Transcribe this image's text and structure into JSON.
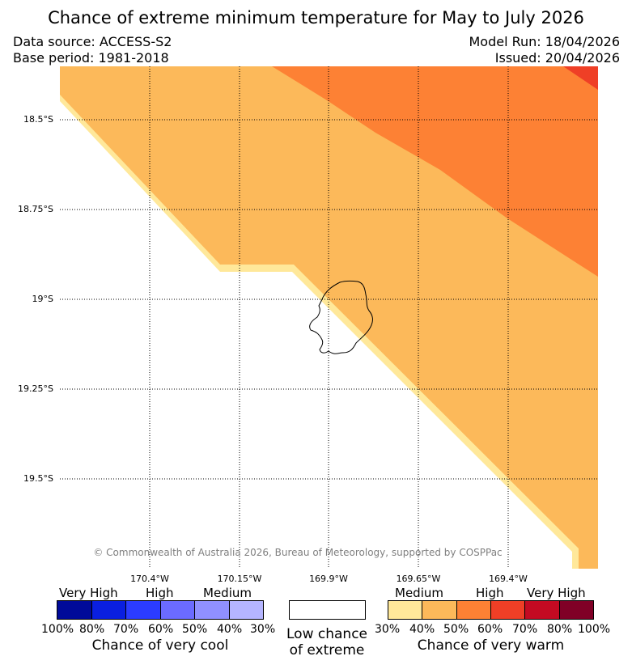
{
  "title": "Chance of extreme minimum temperature for May to July 2026",
  "meta": {
    "data_source": "Data source: ACCESS-S2",
    "base_period": "Base period: 1981-2018",
    "model_run": "Model Run: 18/04/2026",
    "issued": "Issued: 20/04/2026"
  },
  "map": {
    "latitude_labels": [
      "18.5°S",
      "18.75°S",
      "19°S",
      "19.25°S",
      "19.5°S"
    ],
    "longitude_labels": [
      "170.4°W",
      "170.15°W",
      "169.9°W",
      "169.65°W",
      "169.4°W"
    ],
    "copyright": "© Commonwealth of Australia 2026, Bureau of Meteorology, supported by COSPPac"
  },
  "legend": {
    "cool": {
      "categories": [
        "Very High",
        "High",
        "Medium"
      ],
      "percent_labels": [
        "100%",
        "80%",
        "70%",
        "60%",
        "50%",
        "40%",
        "30%"
      ],
      "colors": [
        "#000a99",
        "#0a1fe0",
        "#2b3cff",
        "#6b6bff",
        "#9090ff",
        "#b5b5ff"
      ],
      "caption": "Chance of very cool"
    },
    "neutral": {
      "caption_line1": "Low chance",
      "caption_line2": "of extreme"
    },
    "warm": {
      "categories": [
        "Medium",
        "High",
        "Very High"
      ],
      "percent_labels": [
        "30%",
        "40%",
        "50%",
        "60%",
        "70%",
        "80%",
        "100%"
      ],
      "colors": [
        "#ffe89a",
        "#fcb95a",
        "#fd8134",
        "#ef3f26",
        "#c40a22",
        "#800026"
      ],
      "caption": "Chance of very warm"
    }
  }
}
